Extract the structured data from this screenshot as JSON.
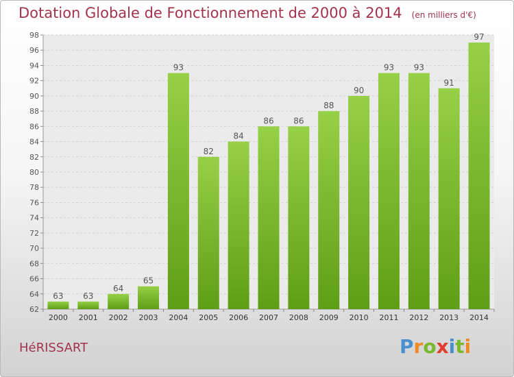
{
  "header": {
    "title": "Dotation Globale de Fonctionnement de 2000 à 2014",
    "subtitle": "(en milliers d'€)"
  },
  "footer": {
    "commune": "HéRISSART",
    "logo": {
      "letters": [
        "P",
        "r",
        "o",
        "x",
        "i",
        "t",
        "i"
      ],
      "colors": [
        "#4a8fd0",
        "#f08a24",
        "#7ab82e",
        "#e33b2e",
        "#4a8fd0",
        "#7ab82e",
        "#f08a24"
      ]
    }
  },
  "chart_data": {
    "type": "bar",
    "categories": [
      "2000",
      "2001",
      "2002",
      "2003",
      "2004",
      "2005",
      "2006",
      "2007",
      "2008",
      "2009",
      "2010",
      "2011",
      "2012",
      "2013",
      "2014"
    ],
    "values": [
      63,
      63,
      64,
      65,
      93,
      82,
      84,
      86,
      86,
      88,
      90,
      93,
      93,
      91,
      97
    ],
    "data_labels": [
      "63",
      "63",
      "64",
      "65",
      "93",
      "82",
      "84",
      "86",
      "86",
      "88",
      "90",
      "93",
      "93",
      "91",
      "97"
    ],
    "ylim": [
      62,
      98
    ],
    "yticks": [
      "62",
      "64",
      "66",
      "68",
      "70",
      "72",
      "74",
      "76",
      "78",
      "80",
      "82",
      "84",
      "86",
      "88",
      "90",
      "92",
      "94",
      "96",
      "98"
    ],
    "grid": true,
    "bar_color_top": "#96d046",
    "bar_color_bottom": "#5e9e16"
  }
}
